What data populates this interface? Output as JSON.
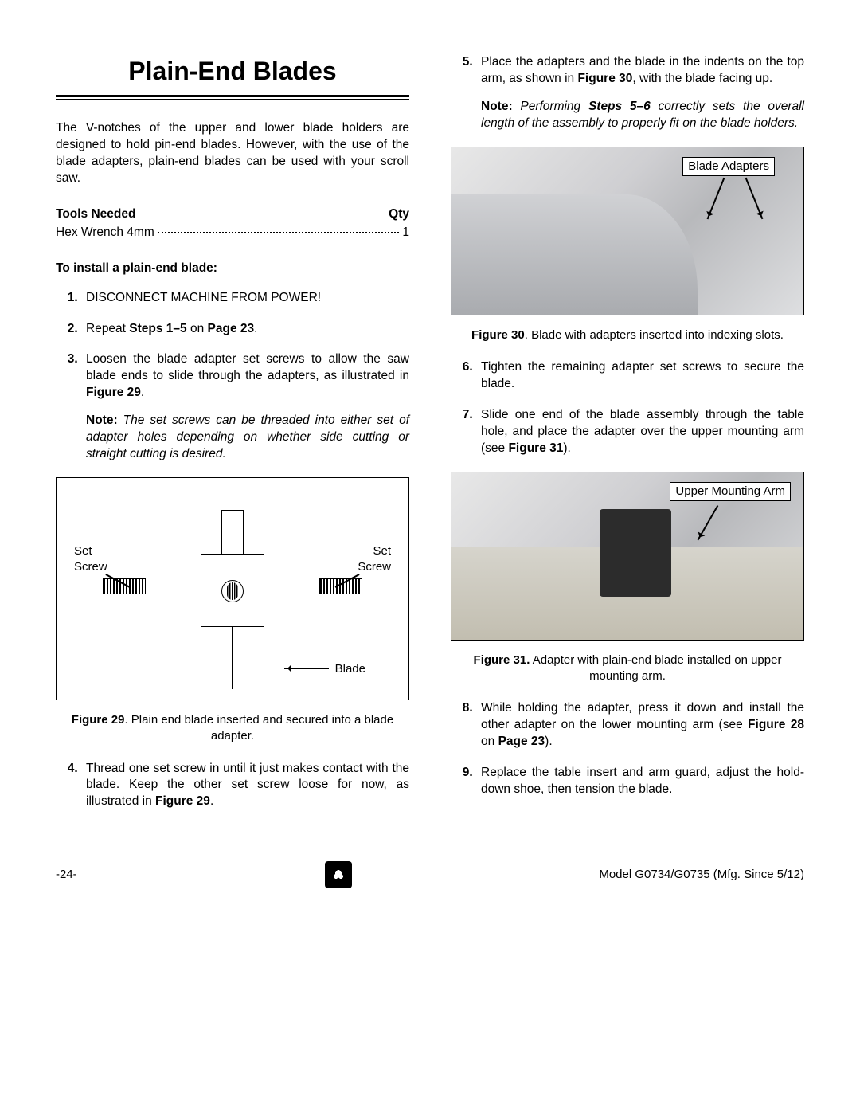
{
  "title": "Plain-End Blades",
  "intro": "The V-notches of the upper and lower blade holders are designed to hold pin-end blades. However, with the use of the blade adapters, plain-end blades can be used with your scroll saw.",
  "tools": {
    "header_left": "Tools Needed",
    "header_right": "Qty",
    "item": "Hex Wrench 4mm",
    "qty": "1"
  },
  "subhead": "To install a plain-end blade:",
  "steps": {
    "s1": "DISCONNECT MACHINE FROM POWER!",
    "s2_a": "Repeat ",
    "s2_b": "Steps 1–5",
    "s2_c": " on ",
    "s2_d": "Page 23",
    "s2_e": ".",
    "s3_a": "Loosen the blade adapter set screws to allow the saw blade ends to slide through the adapters, as illustrated in ",
    "s3_b": "Figure 29",
    "s3_c": ".",
    "s3_note_a": "Note:",
    "s3_note_b": " The set screws can be threaded into either set of adapter holes depending on whether side cutting or straight cutting is desired.",
    "s4_a": "Thread one set screw in until it just makes contact with the blade. Keep the other set screw loose for now, as illustrated in ",
    "s4_b": "Figure 29",
    "s4_c": ".",
    "s5_a": "Place the adapters and the blade in the indents on the top arm, as shown in ",
    "s5_b": "Figure 30",
    "s5_c": ", with the blade facing up.",
    "s5_note_a": "Note:",
    "s5_note_b": " Performing ",
    "s5_note_c": "Steps 5–6",
    "s5_note_d": " correctly sets the overall length of the assembly to properly fit on the blade holders.",
    "s6": "Tighten the remaining adapter set screws to secure the blade.",
    "s7_a": "Slide one end of the blade assembly through the table hole, and place the adapter over the upper mounting arm (see ",
    "s7_b": "Figure 31",
    "s7_c": ").",
    "s8_a": "While holding the adapter, press it down and install the other adapter on the lower mounting arm (see ",
    "s8_b": "Figure 28",
    "s8_c": " on ",
    "s8_d": "Page 23",
    "s8_e": ").",
    "s9": "Replace the table insert and arm guard, adjust the hold-down shoe, then tension the blade."
  },
  "fig29": {
    "cap_a": "Figure 29",
    "cap_b": ". Plain end blade inserted and secured into a blade adapter.",
    "lbl_set": "Set",
    "lbl_screw": "Screw",
    "lbl_blade": "Blade"
  },
  "fig30": {
    "callout": "Blade Adapters",
    "cap_a": "Figure 30",
    "cap_b": ". Blade with adapters inserted into indexing slots."
  },
  "fig31": {
    "callout": "Upper Mounting Arm",
    "cap_a": "Figure 31.",
    "cap_b": " Adapter with plain-end blade installed on upper mounting arm."
  },
  "footer": {
    "page": "-24-",
    "model": "Model G0734/G0735 (Mfg. Since 5/12)"
  }
}
